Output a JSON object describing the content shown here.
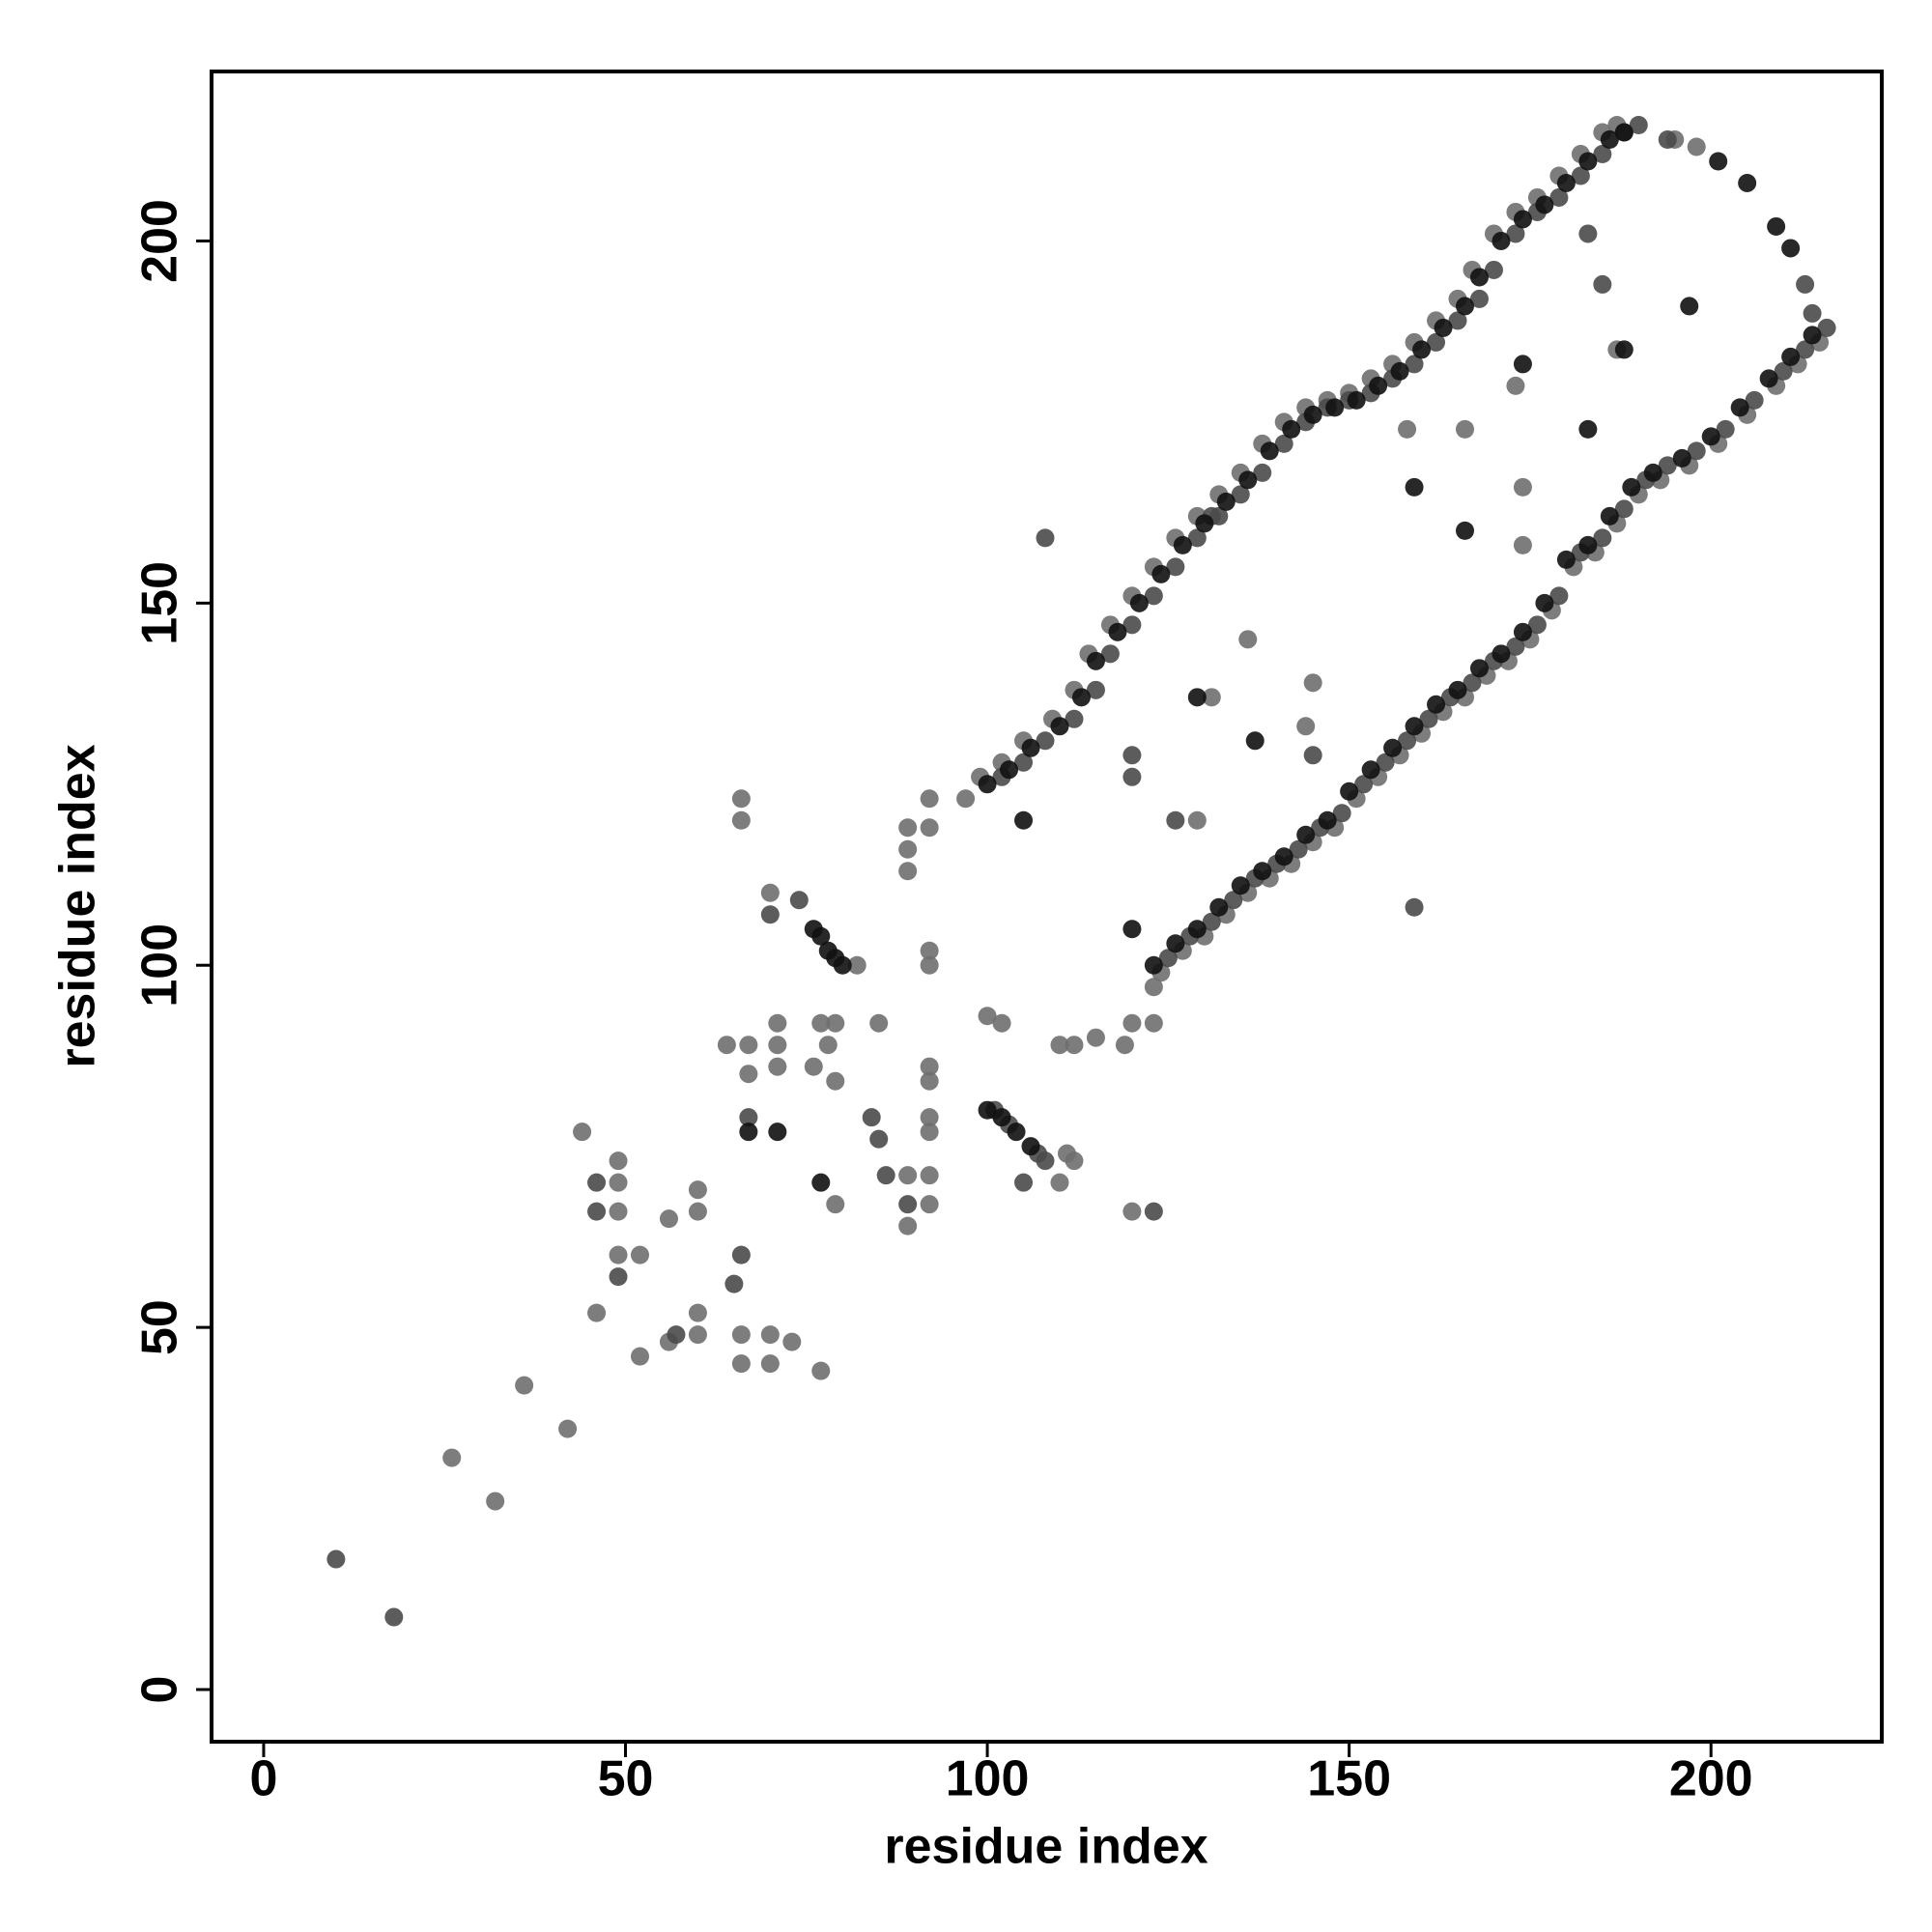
{
  "chart_data": {
    "type": "scatter",
    "x_label": "residue index",
    "y_label": "residue index",
    "xlim": [
      -7.2,
      223.6
    ],
    "ylim": [
      -7.2,
      223.4
    ],
    "xticks": [
      0,
      50,
      100,
      150,
      200
    ],
    "yticks": [
      0,
      50,
      100,
      150,
      200
    ],
    "series": [
      {
        "color": "#6f6f6f",
        "x": [
          99,
          102,
          105,
          109,
          112,
          114,
          117,
          120,
          123,
          126,
          129,
          132,
          135,
          138,
          141,
          144,
          147,
          150,
          153,
          156,
          159,
          162,
          165,
          167,
          170,
          173,
          176,
          179,
          182,
          185,
          187,
          124,
          127,
          130,
          133,
          136,
          139,
          142,
          145,
          148,
          151,
          154,
          157,
          160,
          163,
          166,
          169,
          172,
          175,
          178,
          181,
          184,
          187,
          190,
          193,
          197,
          201,
          205,
          209,
          212,
          215,
          26,
          32,
          36,
          42,
          44,
          46,
          49,
          49,
          49,
          49,
          52,
          52,
          56,
          60,
          60,
          60,
          60,
          56,
          64,
          66,
          66,
          66,
          66,
          67,
          67,
          70,
          70,
          70,
          71,
          71,
          71,
          73,
          77,
          77,
          79,
          76,
          79,
          78,
          79,
          82,
          85,
          89,
          89,
          92,
          89,
          89,
          89,
          92,
          92,
          92,
          92,
          92,
          92,
          92,
          92,
          92,
          97,
          100,
          102,
          110,
          112,
          115,
          110,
          111,
          112,
          119,
          120,
          123,
          123,
          120,
          129,
          131,
          136,
          145,
          144,
          158,
          166,
          174,
          174,
          173,
          187,
          195,
          198
        ],
        "y": [
          126,
          128,
          131,
          134,
          138,
          143,
          147,
          151,
          155,
          159,
          162,
          165,
          168,
          172,
          175,
          177,
          178,
          179,
          181,
          183,
          186,
          189,
          192,
          196,
          201,
          204,
          206,
          209,
          212,
          215,
          216,
          99,
          102,
          104,
          107,
          110,
          112,
          114,
          117,
          119,
          123,
          126,
          129,
          132,
          135,
          137,
          140,
          142,
          145,
          149,
          155,
          157,
          161,
          165,
          167,
          169,
          172,
          176,
          180,
          183,
          186,
          32,
          26,
          42,
          36,
          77,
          52,
          73,
          70,
          66,
          60,
          60,
          46,
          65,
          69,
          66,
          52,
          49,
          48,
          89,
          123,
          120,
          49,
          45,
          89,
          85,
          110,
          49,
          45,
          92,
          89,
          86,
          48,
          44,
          92,
          92,
          86,
          84,
          89,
          67,
          100,
          92,
          64,
          71,
          71,
          119,
          116,
          113,
          77,
          79,
          86,
          84,
          123,
          119,
          102,
          100,
          67,
          123,
          93,
          92,
          89,
          89,
          90,
          70,
          74,
          73,
          89,
          92,
          92,
          97,
          66,
          120,
          137,
          145,
          139,
          133,
          174,
          174,
          158,
          166,
          180,
          185,
          214,
          213
        ]
      },
      {
        "color": "#4a4a4a",
        "x": [
          102,
          105,
          108,
          112,
          115,
          117,
          120,
          123,
          126,
          129,
          132,
          135,
          138,
          141,
          144,
          147,
          150,
          153,
          156,
          159,
          162,
          165,
          168,
          170,
          173,
          176,
          179,
          182,
          185,
          188,
          190,
          125,
          128,
          131,
          134,
          137,
          140,
          143,
          146,
          149,
          152,
          155,
          158,
          161,
          164,
          167,
          170,
          173,
          176,
          179,
          182,
          185,
          188,
          191,
          194,
          198,
          202,
          206,
          210,
          213,
          216,
          10,
          18,
          46,
          46,
          49,
          57,
          66,
          65,
          67,
          70,
          74,
          85,
          84,
          89,
          86,
          101,
          103,
          107,
          108,
          105,
          108,
          159,
          120,
          120,
          123,
          126,
          145,
          131,
          185,
          183,
          213,
          214,
          194
        ],
        "y": [
          126,
          128,
          131,
          134,
          138,
          143,
          147,
          151,
          155,
          159,
          162,
          165,
          168,
          172,
          175,
          177,
          178,
          179,
          181,
          183,
          186,
          189,
          192,
          196,
          201,
          204,
          206,
          209,
          212,
          215,
          216,
          101,
          104,
          106,
          109,
          112,
          114,
          116,
          119,
          121,
          125,
          128,
          131,
          134,
          137,
          139,
          142,
          144,
          147,
          151,
          157,
          159,
          163,
          167,
          169,
          171,
          174,
          178,
          182,
          185,
          188,
          18,
          10,
          70,
          66,
          57,
          49,
          60,
          56,
          79,
          107,
          109,
          76,
          79,
          67,
          71,
          80,
          78,
          74,
          73,
          70,
          159,
          108,
          129,
          126,
          66,
          120,
          129,
          162,
          194,
          201,
          194,
          190,
          214
        ]
      },
      {
        "color": "#111111",
        "x": [
          100,
          103,
          106,
          110,
          113,
          115,
          118,
          121,
          124,
          127,
          130,
          133,
          136,
          139,
          142,
          145,
          148,
          151,
          154,
          157,
          160,
          163,
          166,
          168,
          171,
          174,
          177,
          180,
          183,
          186,
          188,
          123,
          126,
          129,
          132,
          135,
          138,
          141,
          144,
          147,
          150,
          153,
          156,
          159,
          162,
          165,
          168,
          171,
          174,
          177,
          180,
          183,
          186,
          189,
          192,
          196,
          200,
          204,
          208,
          211,
          214,
          76,
          77,
          78,
          79,
          80,
          100,
          102,
          104,
          106,
          77,
          67,
          71,
          105,
          120,
          129,
          137,
          183,
          174,
          159,
          166,
          188,
          197,
          201,
          205,
          209,
          211
        ],
        "y": [
          125,
          127,
          130,
          133,
          137,
          142,
          146,
          150,
          154,
          158,
          161,
          164,
          167,
          171,
          174,
          176,
          177,
          178,
          180,
          182,
          185,
          188,
          191,
          195,
          200,
          203,
          205,
          208,
          211,
          214,
          215,
          100,
          103,
          105,
          108,
          111,
          113,
          115,
          118,
          120,
          124,
          127,
          130,
          133,
          136,
          138,
          141,
          143,
          146,
          150,
          156,
          158,
          162,
          166,
          168,
          170,
          173,
          177,
          181,
          184,
          187,
          105,
          104,
          102,
          101,
          100,
          80,
          79,
          77,
          75,
          70,
          77,
          77,
          120,
          105,
          137,
          131,
          174,
          183,
          166,
          160,
          185,
          191,
          211,
          208,
          202,
          199
        ]
      }
    ]
  }
}
